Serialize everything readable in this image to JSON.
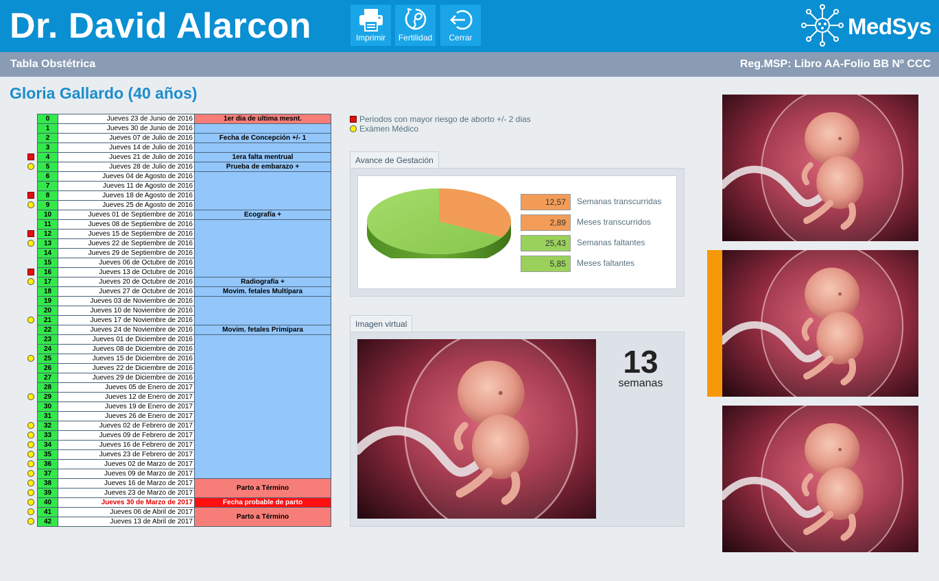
{
  "header": {
    "doctor_name": "Dr. David Alarcon",
    "buttons": {
      "print": "Imprimir",
      "fertility": "Fertilidad",
      "close": "Cerrar"
    },
    "logo_text": "MedSys"
  },
  "subheader": {
    "left": "Tabla Obstétrica",
    "right": "Reg.MSP: Libro AA-Folio BB Nº CCC"
  },
  "patient": {
    "name": "Gloria Gallardo (40 años)"
  },
  "legend": {
    "risk": "Periodos con mayor riesgo de aborto +/- 2 dias",
    "exam": "Exámen Médico"
  },
  "table": {
    "rows": [
      {
        "week": "0",
        "date": "Jueves 23 de Junio de 2016"
      },
      {
        "week": "1",
        "date": "Jueves 30 de Junio de 2016"
      },
      {
        "week": "2",
        "date": "Jueves 07 de Julio de 2016"
      },
      {
        "week": "3",
        "date": "Jueves 14 de Julio de 2016"
      },
      {
        "week": "4",
        "date": "Jueves 21 de Julio de 2016"
      },
      {
        "week": "5",
        "date": "Jueves 28 de Julio de 2016"
      },
      {
        "week": "6",
        "date": "Jueves 04 de Agosto de 2016"
      },
      {
        "week": "7",
        "date": "Jueves 11 de Agosto de 2016"
      },
      {
        "week": "8",
        "date": "Jueves 18 de Agosto de 2016"
      },
      {
        "week": "9",
        "date": "Jueves 25 de Agosto de 2016"
      },
      {
        "week": "10",
        "date": "Jueves 01 de Septiembre de 2016"
      },
      {
        "week": "11",
        "date": "Jueves 08 de Septiembre de 2016"
      },
      {
        "week": "12",
        "date": "Jueves 15 de Septiembre de 2016"
      },
      {
        "week": "13",
        "date": "Jueves 22 de Septiembre de 2016"
      },
      {
        "week": "14",
        "date": "Jueves 29 de Septiembre de 2016"
      },
      {
        "week": "15",
        "date": "Jueves 06 de Octubre de 2016"
      },
      {
        "week": "16",
        "date": "Jueves 13 de Octubre de 2016"
      },
      {
        "week": "17",
        "date": "Jueves 20 de Octubre de 2016"
      },
      {
        "week": "18",
        "date": "Jueves 27 de Octubre de 2016"
      },
      {
        "week": "19",
        "date": "Jueves 03 de Noviembre de 2016"
      },
      {
        "week": "20",
        "date": "Jueves 10 de Noviembre de 2016"
      },
      {
        "week": "21",
        "date": "Jueves 17 de Noviembre de 2016"
      },
      {
        "week": "22",
        "date": "Jueves 24 de Noviembre de 2016"
      },
      {
        "week": "23",
        "date": "Jueves 01 de Diciembre de 2016"
      },
      {
        "week": "24",
        "date": "Jueves 08 de Diciembre de 2016"
      },
      {
        "week": "25",
        "date": "Jueves 15 de Diciembre de 2016"
      },
      {
        "week": "26",
        "date": "Jueves 22 de Diciembre de 2016"
      },
      {
        "week": "27",
        "date": "Jueves 29 de Diciembre de 2016"
      },
      {
        "week": "28",
        "date": "Jueves 05 de Enero de 2017"
      },
      {
        "week": "29",
        "date": "Jueves 12 de Enero de 2017"
      },
      {
        "week": "30",
        "date": "Jueves 19 de Enero de 2017"
      },
      {
        "week": "31",
        "date": "Jueves 26 de Enero de 2017"
      },
      {
        "week": "32",
        "date": "Jueves 02 de Febrero de 2017"
      },
      {
        "week": "33",
        "date": "Jueves 09 de Febrero de 2017"
      },
      {
        "week": "34",
        "date": "Jueves 16 de Febrero de 2017"
      },
      {
        "week": "35",
        "date": "Jueves 23 de Febrero de 2017"
      },
      {
        "week": "36",
        "date": "Jueves 02 de Marzo de 2017"
      },
      {
        "week": "37",
        "date": "Jueves 09 de Marzo de 2017"
      },
      {
        "week": "38",
        "date": "Jueves 16 de Marzo de 2017"
      },
      {
        "week": "39",
        "date": "Jueves 23 de Marzo de 2017"
      },
      {
        "week": "40",
        "date": "Jueves 30 de Marzo de 2017"
      },
      {
        "week": "41",
        "date": "Jueves 06 de Abril de 2017"
      },
      {
        "week": "42",
        "date": "Jueves 13 de Abril de 2017"
      }
    ],
    "events": {
      "e0": "1er dia de ultima mesnt.",
      "e2": "Fecha de Concepción +/- 1",
      "e4": "1era falta mentrual",
      "e5": "Prueba de embarazo +",
      "e10": "Ecografía +",
      "e17": "Radiografía +",
      "e18": "Movim. fetales Multípara",
      "e22": "Movim. fetales Primípara",
      "e38": "Parto a Término",
      "e40": "Fecha probable de parto",
      "e41": "Parto a Término"
    }
  },
  "avance": {
    "tab": "Avance de Gestación",
    "stats": {
      "weeks_elapsed": {
        "value": "12,57",
        "label": "Semanas transcurridas"
      },
      "months_elapsed": {
        "value": "2,89",
        "label": "Meses transcurridos"
      },
      "weeks_left": {
        "value": "25,43",
        "label": "Semanas faltantes"
      },
      "months_left": {
        "value": "5,85",
        "label": "Meses faltantes"
      }
    },
    "pie_fraction_elapsed": 0.3307,
    "colors": {
      "elapsed": "#f39c57",
      "remaining": "#8fcd55"
    }
  },
  "imagen": {
    "tab": "Imagen virtual",
    "week_number": "13",
    "week_label": "semanas"
  }
}
